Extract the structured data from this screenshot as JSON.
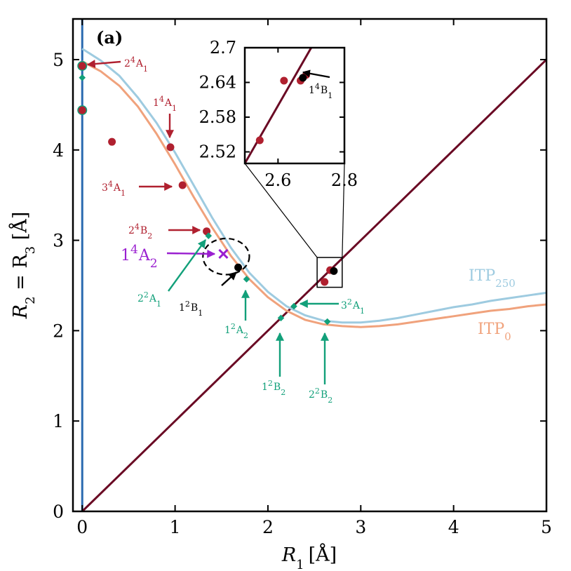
{
  "chart_data": {
    "type": "scatter",
    "panel_label": "(a)",
    "xlabel": {
      "var": "R",
      "sub": "1",
      "unit": "[Å]"
    },
    "ylabel": {
      "text": "R",
      "sub1": "2",
      "mid": " = R",
      "sub2": "3",
      "unit": " [Å]"
    },
    "xlim": [
      -0.1,
      5
    ],
    "ylim": [
      0,
      5.45
    ],
    "xticks": [
      "0",
      "1",
      "2",
      "3",
      "4",
      "5"
    ],
    "yticks": [
      "0",
      "1",
      "2",
      "3",
      "4",
      "5"
    ],
    "xtick_values": [
      0,
      1,
      2,
      3,
      4,
      5
    ],
    "ytick_values": [
      0,
      1,
      2,
      3,
      4,
      5
    ],
    "colors": {
      "quartet": "#b0202f",
      "doublet": "#12a07a",
      "black": "#000000",
      "violet": "#9a1fd0",
      "itp250": "#9ecbe0",
      "itp0": "#f0a27c",
      "diagonal": "#6a0a24",
      "axis_line": "#2a6ab0"
    },
    "series": [
      {
        "name": "ITP",
        "sub": "250",
        "type": "curve",
        "x": [
          0,
          0.2,
          0.4,
          0.6,
          0.8,
          1.0,
          1.2,
          1.4,
          1.6,
          1.8,
          2.0,
          2.2,
          2.4,
          2.6,
          2.8,
          3.0,
          3.2,
          3.4,
          3.6,
          3.8,
          4.0,
          4.2,
          4.4,
          4.6,
          4.8,
          5.0
        ],
        "y": [
          5.12,
          4.99,
          4.82,
          4.58,
          4.3,
          3.97,
          3.61,
          3.25,
          2.92,
          2.64,
          2.43,
          2.27,
          2.17,
          2.11,
          2.09,
          2.09,
          2.11,
          2.14,
          2.18,
          2.22,
          2.26,
          2.29,
          2.33,
          2.36,
          2.39,
          2.42
        ]
      },
      {
        "name": "ITP",
        "sub": "0",
        "type": "curve",
        "x": [
          0,
          0.2,
          0.4,
          0.6,
          0.8,
          1.0,
          1.2,
          1.4,
          1.6,
          1.8,
          2.0,
          2.2,
          2.4,
          2.6,
          2.8,
          3.0,
          3.2,
          3.4,
          3.6,
          3.8,
          4.0,
          4.2,
          4.4,
          4.6,
          4.8,
          5.0
        ],
        "y": [
          4.98,
          4.87,
          4.71,
          4.48,
          4.18,
          3.84,
          3.48,
          3.14,
          2.83,
          2.57,
          2.37,
          2.22,
          2.12,
          2.07,
          2.05,
          2.04,
          2.05,
          2.07,
          2.1,
          2.13,
          2.16,
          2.19,
          2.22,
          2.24,
          2.27,
          2.29
        ]
      }
    ],
    "quartet_points": [
      {
        "x": 0.0,
        "y": 4.93
      },
      {
        "x": 0.0,
        "y": 4.44
      },
      {
        "x": 0.32,
        "y": 4.09
      },
      {
        "x": 0.95,
        "y": 4.03
      },
      {
        "x": 1.08,
        "y": 3.61
      },
      {
        "x": 1.34,
        "y": 3.1
      },
      {
        "x": 2.61,
        "y": 2.54
      },
      {
        "x": 2.67,
        "y": 2.67
      }
    ],
    "doublet_points": [
      {
        "x": 0.0,
        "y": 4.8
      },
      {
        "x": 1.36,
        "y": 3.05
      },
      {
        "x": 1.77,
        "y": 2.57
      },
      {
        "x": 2.14,
        "y": 2.14
      },
      {
        "x": 2.28,
        "y": 2.27
      },
      {
        "x": 2.64,
        "y": 2.1
      }
    ],
    "black_points": [
      {
        "x": 1.68,
        "y": 2.7
      },
      {
        "x": 2.71,
        "y": 2.66
      }
    ],
    "cross_point": {
      "x": 1.52,
      "y": 2.85
    },
    "ring_points": [
      {
        "x": 0.0,
        "y": 4.93
      },
      {
        "x": 0.0,
        "y": 4.44
      }
    ],
    "ellipse": {
      "cx": 1.55,
      "cy": 2.82,
      "rx": 0.25,
      "ry": 0.2
    },
    "inset_box": {
      "x0": 2.53,
      "x1": 2.8,
      "y0": 2.48,
      "y1": 2.81
    },
    "labels": {
      "l24A1": {
        "base": "2",
        "sup": "4",
        "term": "A",
        "sub": "1"
      },
      "l14A1": {
        "base": "1",
        "sup": "4",
        "term": "A",
        "sub": "1"
      },
      "l34A1": {
        "base": "3",
        "sup": "4",
        "term": "A",
        "sub": "1"
      },
      "l24B2": {
        "base": "2",
        "sup": "4",
        "term": "B",
        "sub": "2"
      },
      "l14A2": {
        "base": "1",
        "sup": "4",
        "term": "A",
        "sub": "2"
      },
      "l22A1": {
        "base": "2",
        "sup": "2",
        "term": "A",
        "sub": "1"
      },
      "l12B1": {
        "base": "1",
        "sup": "2",
        "term": "B",
        "sub": "1"
      },
      "l12A2": {
        "base": "1",
        "sup": "2",
        "term": "A",
        "sub": "2"
      },
      "l12B2": {
        "base": "1",
        "sup": "2",
        "term": "B",
        "sub": "2"
      },
      "l22B2": {
        "base": "2",
        "sup": "2",
        "term": "B",
        "sub": "2"
      },
      "l32A1": {
        "base": "3",
        "sup": "2",
        "term": "A",
        "sub": "1"
      },
      "l14B1": {
        "base": "1",
        "sup": "4",
        "term": "B",
        "sub": "1"
      }
    },
    "inset": {
      "xlim": [
        2.5,
        2.8
      ],
      "ylim": [
        2.5,
        2.7
      ],
      "xticks": [
        "2.6",
        "2.8"
      ],
      "xtick_values": [
        2.6,
        2.8
      ],
      "yticks": [
        "2.52",
        "2.58",
        "2.64",
        "2.7"
      ],
      "ytick_values": [
        2.52,
        2.58,
        2.64,
        2.7
      ],
      "quartet_points": [
        {
          "x": 2.545,
          "y": 2.54
        },
        {
          "x": 2.618,
          "y": 2.643
        },
        {
          "x": 2.668,
          "y": 2.643
        },
        {
          "x": 2.685,
          "y": 2.653
        }
      ],
      "black_points": [
        {
          "x": 2.675,
          "y": 2.648
        }
      ]
    }
  }
}
